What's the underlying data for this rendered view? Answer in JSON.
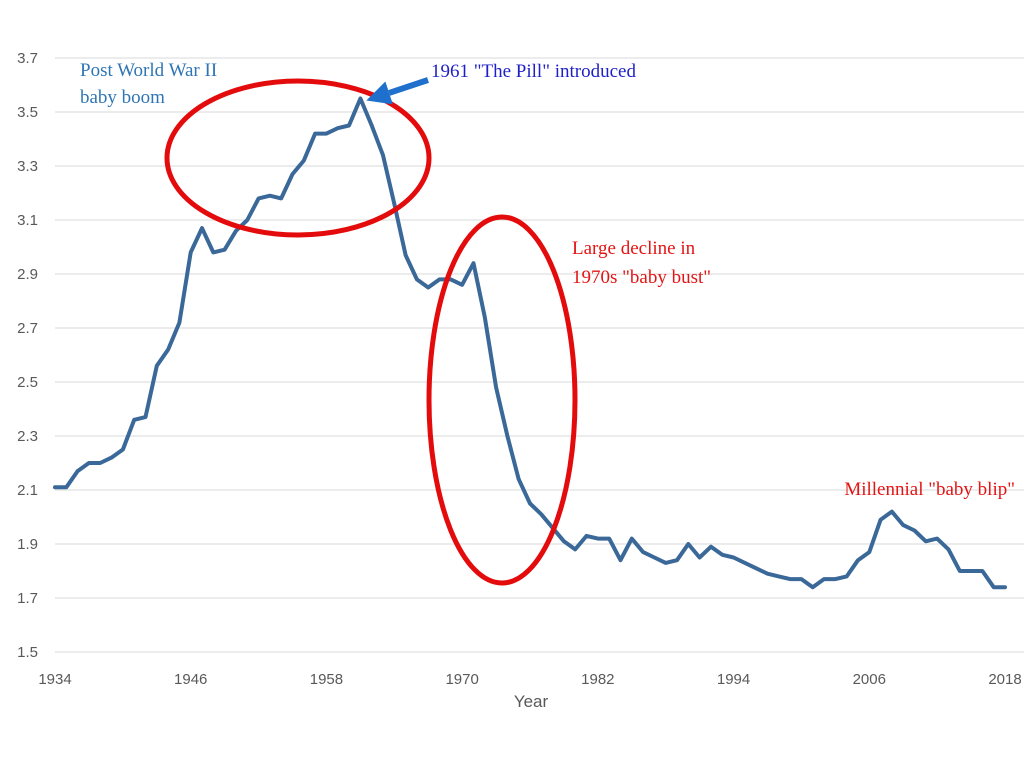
{
  "chart_data": {
    "type": "line",
    "title": "",
    "xlabel": "Year",
    "ylabel": "",
    "xlim": [
      1934,
      2018
    ],
    "ylim": [
      1.5,
      3.7
    ],
    "x_ticks": [
      "1934",
      "1946",
      "1958",
      "1970",
      "1982",
      "1994",
      "2006",
      "2018"
    ],
    "y_ticks": [
      "1.5",
      "1.7",
      "1.9",
      "2.1",
      "2.3",
      "2.5",
      "2.7",
      "2.9",
      "3.1",
      "3.3",
      "3.5",
      "3.7"
    ],
    "grid": "horizontal",
    "line_color": "#3A6898",
    "series": [
      {
        "x": [
          1934,
          1935,
          1936,
          1937,
          1938,
          1939,
          1940,
          1941,
          1942,
          1943,
          1944,
          1945,
          1946,
          1947,
          1948,
          1949,
          1950,
          1951,
          1952,
          1953,
          1954,
          1955,
          1956,
          1957,
          1958,
          1959,
          1960,
          1961,
          1962,
          1963,
          1964,
          1965,
          1966,
          1967,
          1968,
          1969,
          1970,
          1971,
          1972,
          1973,
          1974,
          1975,
          1976,
          1977,
          1978,
          1979,
          1980,
          1981,
          1982,
          1983,
          1984,
          1985,
          1986,
          1987,
          1988,
          1989,
          1990,
          1991,
          1992,
          1993,
          1994,
          1995,
          1996,
          1997,
          1998,
          1999,
          2000,
          2001,
          2002,
          2003,
          2004,
          2005,
          2006,
          2007,
          2008,
          2009,
          2010,
          2011,
          2012,
          2013,
          2014,
          2015,
          2016,
          2017,
          2018
        ],
        "values": [
          2.11,
          2.11,
          2.17,
          2.2,
          2.2,
          2.22,
          2.25,
          2.36,
          2.37,
          2.56,
          2.62,
          2.72,
          2.98,
          3.07,
          2.98,
          2.99,
          3.06,
          3.1,
          3.18,
          3.19,
          3.18,
          3.27,
          3.32,
          3.42,
          3.42,
          3.44,
          3.45,
          3.55,
          3.45,
          3.34,
          3.16,
          2.97,
          2.88,
          2.85,
          2.88,
          2.88,
          2.86,
          2.94,
          2.74,
          2.48,
          2.3,
          2.14,
          2.05,
          2.01,
          1.96,
          1.91,
          1.88,
          1.93,
          1.92,
          1.92,
          1.84,
          1.92,
          1.87,
          1.85,
          1.83,
          1.84,
          1.9,
          1.85,
          1.89,
          1.86,
          1.85,
          1.83,
          1.81,
          1.79,
          1.78,
          1.77,
          1.77,
          1.74,
          1.77,
          1.77,
          1.78,
          1.84,
          1.87,
          1.99,
          2.02,
          1.97,
          1.95,
          1.91,
          1.92,
          1.88,
          1.8,
          1.8,
          1.8,
          1.74,
          1.74
        ]
      }
    ],
    "annotations": [
      {
        "id": "postwar",
        "text": [
          "Post World War II",
          "baby boom"
        ],
        "color": "#2E75B6",
        "target_x": 1956,
        "target_y": 3.32
      },
      {
        "id": "pill",
        "text": [
          "1961 \"The Pill\" introduced"
        ],
        "color": "#1F1FC8",
        "arrow_to_x": 1961,
        "arrow_to_y": 3.55,
        "arrow_color": "#1F6FCC"
      },
      {
        "id": "decline",
        "text": [
          "Large decline in",
          "1970s \"baby bust\""
        ],
        "color": "#E31414",
        "target_x": 1974,
        "target_y": 2.43
      },
      {
        "id": "blip",
        "text": [
          "Millennial \"baby blip\""
        ],
        "color": "#E31414"
      }
    ],
    "highlight_color": "#E30B0B"
  }
}
